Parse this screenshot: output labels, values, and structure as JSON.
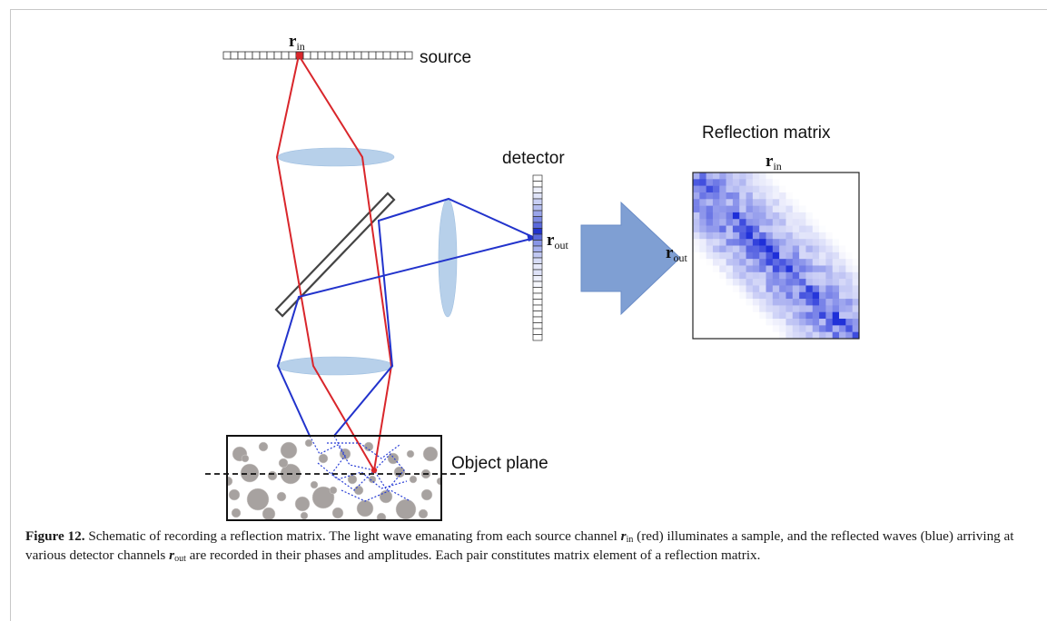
{
  "figure": {
    "labels": {
      "r_in": "r",
      "r_in_sub": "in",
      "source": "source",
      "detector": "detector",
      "r_out": "r",
      "r_out_sub": "out",
      "matrix_title": "Reflection matrix",
      "matrix_r_in": "r",
      "matrix_r_in_sub": "in",
      "matrix_r_out": "r",
      "matrix_r_out_sub": "out",
      "object_plane": "Object plane"
    },
    "colors": {
      "red_beam": "#d9262b",
      "blue_beam": "#2233cc",
      "lens": "#b7d0ea",
      "arrow": "#7f9fd3",
      "particles": "#a7a2a0",
      "matrix_dark": "#1e2fd8"
    }
  },
  "caption": {
    "label": "Figure 12.",
    "text_1": " Schematic of recording a reflection matrix. The light wave emanating from each source channel ",
    "r_in_symbol": "r",
    "r_in_sub": "in",
    "text_2": " (red) illuminates a sample, and the reflected waves (blue) arriving at various detector channels ",
    "r_out_symbol": "r",
    "r_out_sub": "out",
    "text_3": " are recorded in their phases and amplitudes. Each pair constitutes matrix element of a reflection matrix."
  }
}
